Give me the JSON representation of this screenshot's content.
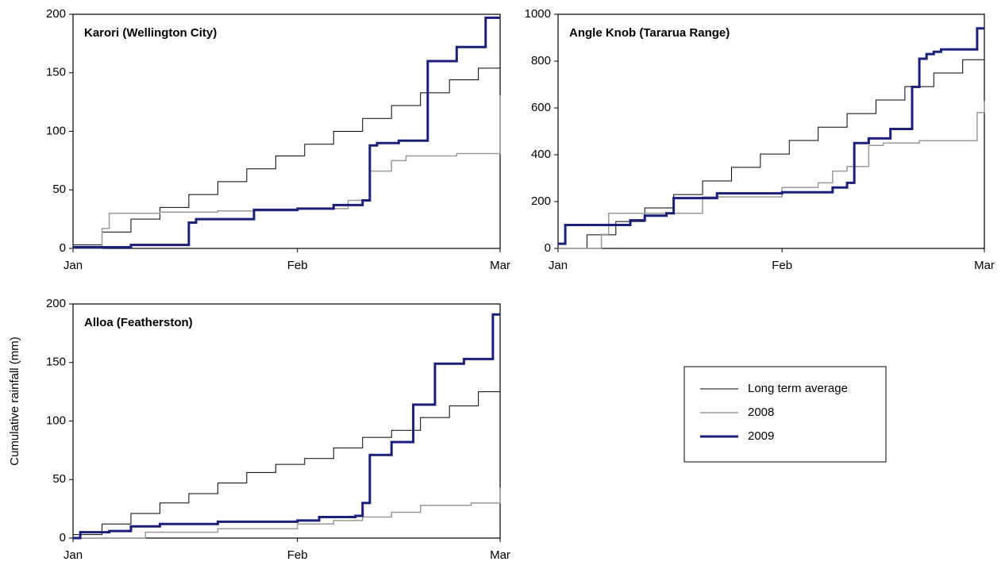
{
  "chart_data": [
    {
      "type": "line",
      "step": true,
      "title": "Karori (Wellington City)",
      "xlim": [
        0,
        59
      ],
      "xticks": [
        {
          "value": 0,
          "label": "Jan"
        },
        {
          "value": 31,
          "label": "Feb"
        },
        {
          "value": 59,
          "label": "Mar"
        }
      ],
      "ylim": [
        0,
        200
      ],
      "yticks": [
        0,
        50,
        100,
        150,
        200
      ],
      "legend": "outside lower right",
      "series": [
        {
          "name": "Long term average",
          "color": "#000000",
          "width": 1,
          "x": [
            0,
            4,
            8,
            12,
            16,
            20,
            24,
            28,
            32,
            36,
            40,
            44,
            48,
            52,
            56,
            59
          ],
          "values": [
            3,
            14,
            25,
            35,
            46,
            57,
            68,
            79,
            89,
            100,
            111,
            122,
            133,
            144,
            154,
            162
          ]
        },
        {
          "name": "2008",
          "color": "#9a9a9a",
          "width": 1.5,
          "x": [
            0,
            4,
            5,
            12,
            20,
            31,
            38,
            41,
            44,
            46,
            53,
            59
          ],
          "values": [
            0,
            17,
            30,
            31,
            32,
            34,
            41,
            66,
            75,
            79,
            81,
            131
          ]
        },
        {
          "name": "2009",
          "color": "#1c1f78",
          "width": 3,
          "x": [
            0,
            8,
            16,
            17,
            25,
            31,
            36,
            40,
            41,
            42,
            45,
            49,
            53,
            57,
            59
          ],
          "values": [
            1,
            3,
            22,
            25,
            33,
            34,
            37,
            41,
            88,
            90,
            92,
            160,
            172,
            197,
            197
          ]
        }
      ]
    },
    {
      "type": "line",
      "step": true,
      "title": "Angle Knob (Tararua Range)",
      "xlim": [
        0,
        59
      ],
      "xticks": [
        {
          "value": 0,
          "label": "Jan"
        },
        {
          "value": 31,
          "label": "Feb"
        },
        {
          "value": 59,
          "label": "Mar"
        }
      ],
      "ylim": [
        0,
        1000
      ],
      "yticks": [
        0,
        200,
        400,
        600,
        800,
        1000
      ],
      "series": [
        {
          "name": "Long term average",
          "color": "#000000",
          "width": 1,
          "x": [
            0,
            4,
            8,
            12,
            16,
            20,
            24,
            28,
            32,
            36,
            40,
            44,
            48,
            52,
            56,
            59
          ],
          "values": [
            0,
            58,
            115,
            173,
            230,
            288,
            346,
            403,
            461,
            518,
            576,
            634,
            691,
            749,
            806,
            850
          ]
        },
        {
          "name": "2008",
          "color": "#9a9a9a",
          "width": 1.5,
          "x": [
            0,
            5,
            6,
            7,
            10,
            15,
            20,
            31,
            36,
            38,
            40,
            43,
            45,
            50,
            57,
            58,
            59
          ],
          "values": [
            0,
            0,
            60,
            150,
            150,
            150,
            220,
            260,
            280,
            330,
            350,
            440,
            450,
            460,
            460,
            580,
            630
          ]
        },
        {
          "name": "2009",
          "color": "#1c1f78",
          "width": 3,
          "x": [
            0,
            1,
            10,
            12,
            15,
            16,
            22,
            31,
            38,
            40,
            41,
            43,
            46,
            48,
            49,
            50,
            51,
            52,
            53,
            57,
            58,
            59
          ],
          "values": [
            20,
            100,
            120,
            140,
            150,
            215,
            235,
            240,
            260,
            280,
            450,
            470,
            510,
            510,
            690,
            810,
            830,
            840,
            850,
            850,
            940,
            940
          ]
        }
      ]
    },
    {
      "type": "line",
      "step": true,
      "title": "Alloa (Featherston)",
      "y_label": "Cumulative rainfall (mm)",
      "xlim": [
        0,
        59
      ],
      "xticks": [
        {
          "value": 0,
          "label": "Jan"
        },
        {
          "value": 31,
          "label": "Feb"
        },
        {
          "value": 59,
          "label": "Mar"
        }
      ],
      "ylim": [
        0,
        200
      ],
      "yticks": [
        0,
        50,
        100,
        150,
        200
      ],
      "series": [
        {
          "name": "Long term average",
          "color": "#000000",
          "width": 1,
          "x": [
            0,
            4,
            8,
            12,
            16,
            20,
            24,
            28,
            32,
            36,
            40,
            44,
            48,
            52,
            56,
            59
          ],
          "values": [
            3,
            12,
            21,
            30,
            38,
            47,
            56,
            63,
            68,
            77,
            86,
            92,
            103,
            113,
            125,
            134
          ]
        },
        {
          "name": "2008",
          "color": "#9a9a9a",
          "width": 1.5,
          "x": [
            0,
            4,
            10,
            20,
            31,
            36,
            40,
            44,
            48,
            55,
            59
          ],
          "values": [
            0,
            0,
            5,
            8,
            12,
            15,
            18,
            22,
            28,
            30,
            43
          ]
        },
        {
          "name": "2009",
          "color": "#1c1f78",
          "width": 3,
          "x": [
            0,
            1,
            5,
            8,
            12,
            20,
            31,
            34,
            39,
            40,
            41,
            44,
            47,
            50,
            54,
            58,
            59
          ],
          "values": [
            0,
            5,
            6,
            10,
            12,
            14,
            15,
            18,
            19,
            30,
            71,
            82,
            114,
            149,
            153,
            191,
            191
          ]
        }
      ]
    }
  ]
}
